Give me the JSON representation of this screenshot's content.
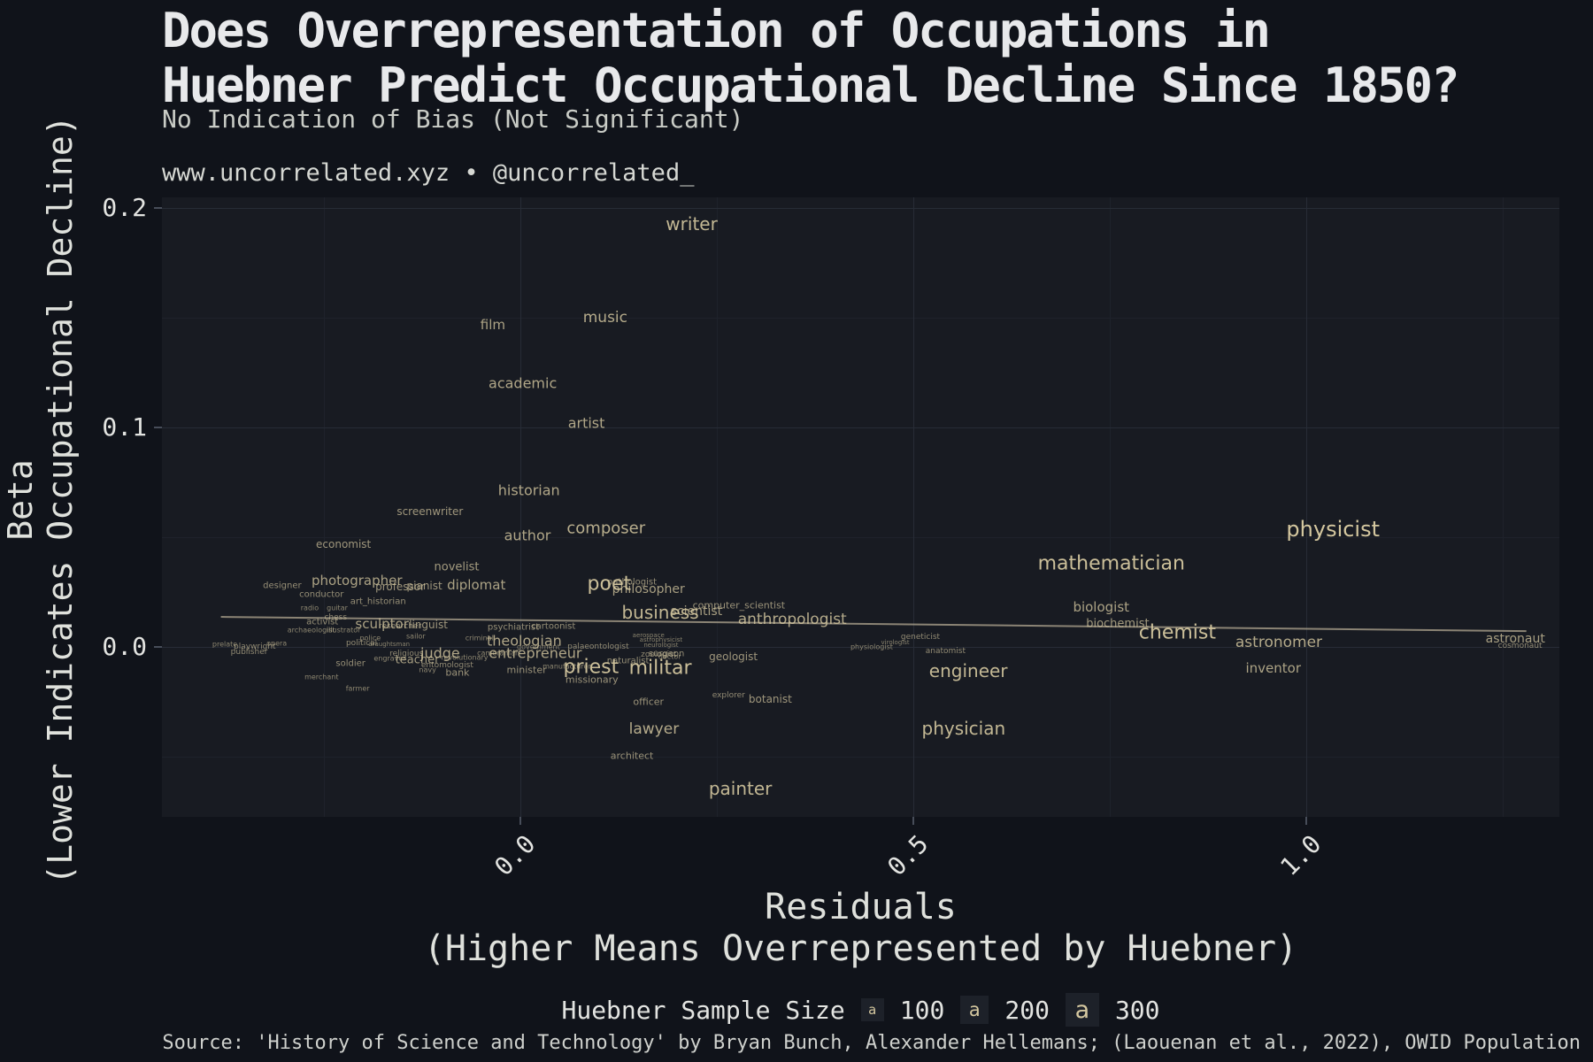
{
  "title": {
    "line1": "Does Overrepresentation of Occupations in",
    "line2": "Huebner Predict Occupational Decline Since 1850?"
  },
  "subtitle": "No Indication of Bias (Not Significant)",
  "credit": "www.uncorrelated.xyz • @uncorrelated_",
  "colors": {
    "background": "#10131a",
    "panel": "#181b22",
    "label": "#d5c8a0",
    "grid_major": "#272c36",
    "grid_minor": "#1e222b",
    "trend": "#a89f8a",
    "text": "#e3e4e1"
  },
  "legend": {
    "title": "Huebner Sample Size",
    "key_glyph": "a",
    "items": [
      {
        "label": "100"
      },
      {
        "label": "200"
      },
      {
        "label": "300"
      }
    ]
  },
  "source": "Source: 'History of Science and Technology' by Bryan Bunch, Alexander Hellemans; (Laouenan et al., 2022), OWID Population",
  "chart_data": {
    "type": "scatter",
    "title": "Does Overrepresentation of Occupations in Huebner Predict Occupational Decline Since 1850?",
    "xlabel_line1": "Residuals",
    "xlabel_line2": "(Higher Means Overrepresented by Huebner)",
    "ylabel_line1": "Beta",
    "ylabel_line2": "(Lower Indicates Occupational Decline)",
    "x_ticks": [
      {
        "v": 0.0,
        "label": "0.0"
      },
      {
        "v": 0.5,
        "label": "0.5"
      },
      {
        "v": 1.0,
        "label": "1.0"
      }
    ],
    "y_ticks": [
      {
        "v": 0.2,
        "label": "0.2"
      },
      {
        "v": 0.1,
        "label": "0.1"
      },
      {
        "v": 0.0,
        "label": "0.0"
      }
    ],
    "x_minor": [
      -0.25,
      0.25,
      0.75,
      1.25
    ],
    "y_minor": [
      0.15,
      0.05,
      -0.05
    ],
    "x_domain": [
      -0.456,
      1.322
    ],
    "y_domain": [
      -0.0774,
      0.2048
    ],
    "grid": true,
    "legend_position": "bottom",
    "trend": {
      "x1": -0.381,
      "y1": 0.0137,
      "x2": 1.28,
      "y2": 0.0072
    },
    "points": [
      {
        "t": "writer",
        "x": 0.218,
        "y": 0.1928,
        "s": 20
      },
      {
        "t": "music",
        "x": 0.108,
        "y": 0.1501,
        "s": 17
      },
      {
        "t": "film",
        "x": -0.035,
        "y": 0.1469,
        "s": 15
      },
      {
        "t": "academic",
        "x": 0.003,
        "y": 0.1203,
        "s": 16
      },
      {
        "t": "artist",
        "x": 0.084,
        "y": 0.1018,
        "s": 16
      },
      {
        "t": "historian",
        "x": 0.011,
        "y": 0.0712,
        "s": 16
      },
      {
        "t": "screenwriter",
        "x": -0.115,
        "y": 0.0616,
        "s": 12
      },
      {
        "t": "composer",
        "x": 0.109,
        "y": 0.0539,
        "s": 18
      },
      {
        "t": "author",
        "x": 0.009,
        "y": 0.0507,
        "s": 16
      },
      {
        "t": "economist",
        "x": -0.225,
        "y": 0.0467,
        "s": 12
      },
      {
        "t": "novelist",
        "x": -0.081,
        "y": 0.0362,
        "s": 13
      },
      {
        "t": "photographer",
        "x": -0.208,
        "y": 0.0302,
        "s": 15
      },
      {
        "t": "professor",
        "x": -0.153,
        "y": 0.0274,
        "s": 12
      },
      {
        "t": "pianist",
        "x": -0.122,
        "y": 0.0278,
        "s": 12
      },
      {
        "t": "designer",
        "x": -0.303,
        "y": 0.0278,
        "s": 10
      },
      {
        "t": "diplomat",
        "x": -0.056,
        "y": 0.0282,
        "s": 15
      },
      {
        "t": "poet",
        "x": 0.113,
        "y": 0.0286,
        "s": 22
      },
      {
        "t": "pathologist",
        "x": 0.142,
        "y": 0.0294,
        "s": 10
      },
      {
        "t": "philosopher",
        "x": 0.163,
        "y": 0.0262,
        "s": 14
      },
      {
        "t": "conductor",
        "x": -0.253,
        "y": 0.0237,
        "s": 10
      },
      {
        "t": "art_historian",
        "x": -0.181,
        "y": 0.0205,
        "s": 10
      },
      {
        "t": "radio",
        "x": -0.268,
        "y": 0.0177,
        "s": 8
      },
      {
        "t": "guitar",
        "x": -0.233,
        "y": 0.0177,
        "s": 8
      },
      {
        "t": "chess",
        "x": -0.235,
        "y": 0.0133,
        "s": 9
      },
      {
        "t": "activist",
        "x": -0.252,
        "y": 0.0113,
        "s": 10
      },
      {
        "t": "sculptor",
        "x": -0.176,
        "y": 0.0105,
        "s": 15
      },
      {
        "t": "researcher",
        "x": -0.153,
        "y": 0.0093,
        "s": 9
      },
      {
        "t": "linguist",
        "x": -0.117,
        "y": 0.0101,
        "s": 12
      },
      {
        "t": "archaeologist",
        "x": -0.266,
        "y": 0.0076,
        "s": 8
      },
      {
        "t": "illustrator",
        "x": -0.225,
        "y": 0.0076,
        "s": 8
      },
      {
        "t": "psychiatrist",
        "x": -0.009,
        "y": 0.0089,
        "s": 10
      },
      {
        "t": "cartoonist",
        "x": 0.042,
        "y": 0.0093,
        "s": 10
      },
      {
        "t": "business",
        "x": 0.178,
        "y": 0.0157,
        "s": 20
      },
      {
        "t": "scientist",
        "x": 0.224,
        "y": 0.0161,
        "s": 14
      },
      {
        "t": "computer_scientist",
        "x": 0.278,
        "y": 0.0189,
        "s": 11
      },
      {
        "t": "anthropologist",
        "x": 0.346,
        "y": 0.0125,
        "s": 17
      },
      {
        "t": "prelate",
        "x": -0.376,
        "y": 0.0012,
        "s": 8
      },
      {
        "t": "opera",
        "x": -0.31,
        "y": 0.0016,
        "s": 8
      },
      {
        "t": "playwright",
        "x": -0.338,
        "y": 0.0,
        "s": 9
      },
      {
        "t": "publisher",
        "x": -0.345,
        "y": -0.0024,
        "s": 9
      },
      {
        "t": "police",
        "x": -0.191,
        "y": 0.004,
        "s": 8
      },
      {
        "t": "political",
        "x": -0.202,
        "y": 0.0016,
        "s": 9
      },
      {
        "t": "draughtsman",
        "x": -0.167,
        "y": 0.0012,
        "s": 7
      },
      {
        "t": "sailor",
        "x": -0.133,
        "y": 0.0048,
        "s": 8
      },
      {
        "t": "criminal",
        "x": -0.052,
        "y": 0.004,
        "s": 8
      },
      {
        "t": "theologian",
        "x": 0.005,
        "y": 0.0028,
        "s": 16
      },
      {
        "t": "government",
        "x": 0.023,
        "y": 0.0,
        "s": 8
      },
      {
        "t": "palaeontologist",
        "x": 0.099,
        "y": 0.0,
        "s": 9
      },
      {
        "t": "cameraman",
        "x": -0.028,
        "y": -0.0028,
        "s": 8
      },
      {
        "t": "entrepreneur",
        "x": 0.019,
        "y": -0.0028,
        "s": 16
      },
      {
        "t": "religious",
        "x": -0.145,
        "y": -0.0032,
        "s": 9
      },
      {
        "t": "judge",
        "x": -0.102,
        "y": -0.0028,
        "s": 16
      },
      {
        "t": "revolutionary",
        "x": -0.071,
        "y": -0.0048,
        "s": 8
      },
      {
        "t": "engraver",
        "x": -0.166,
        "y": -0.0052,
        "s": 8
      },
      {
        "t": "teacher",
        "x": -0.131,
        "y": -0.006,
        "s": 13
      },
      {
        "t": "soldier",
        "x": -0.216,
        "y": -0.0076,
        "s": 10
      },
      {
        "t": "entomologist",
        "x": -0.093,
        "y": -0.0085,
        "s": 9
      },
      {
        "t": "navy",
        "x": -0.118,
        "y": -0.0105,
        "s": 8
      },
      {
        "t": "bank",
        "x": -0.08,
        "y": -0.0117,
        "s": 11
      },
      {
        "t": "merchant",
        "x": -0.253,
        "y": -0.0137,
        "s": 8
      },
      {
        "t": "farmer",
        "x": -0.207,
        "y": -0.0189,
        "s": 8
      },
      {
        "t": "minister",
        "x": 0.008,
        "y": -0.0105,
        "s": 11
      },
      {
        "t": "manufacturer",
        "x": 0.059,
        "y": -0.0089,
        "s": 8
      },
      {
        "t": "priest",
        "x": 0.09,
        "y": -0.0093,
        "s": 22
      },
      {
        "t": "missionary",
        "x": 0.091,
        "y": -0.0149,
        "s": 11
      },
      {
        "t": "aerospace",
        "x": 0.163,
        "y": 0.0052,
        "s": 7
      },
      {
        "t": "astrophysicist",
        "x": 0.179,
        "y": 0.0032,
        "s": 7
      },
      {
        "t": "neurologist",
        "x": 0.179,
        "y": 0.0008,
        "s": 7
      },
      {
        "t": "zoologist",
        "x": 0.176,
        "y": -0.0036,
        "s": 9
      },
      {
        "t": "surgeon",
        "x": 0.186,
        "y": -0.0032,
        "s": 10
      },
      {
        "t": "doctor",
        "x": 0.19,
        "y": -0.0044,
        "s": 8
      },
      {
        "t": "naturalist",
        "x": 0.137,
        "y": -0.0064,
        "s": 10
      },
      {
        "t": "militar",
        "x": 0.178,
        "y": -0.0097,
        "s": 22
      },
      {
        "t": "geologist",
        "x": 0.271,
        "y": -0.0044,
        "s": 12
      },
      {
        "t": "explorer",
        "x": 0.265,
        "y": -0.0221,
        "s": 9
      },
      {
        "t": "botanist",
        "x": 0.318,
        "y": -0.0237,
        "s": 12
      },
      {
        "t": "officer",
        "x": 0.163,
        "y": -0.0249,
        "s": 11
      },
      {
        "t": "lawyer",
        "x": 0.17,
        "y": -0.0374,
        "s": 17
      },
      {
        "t": "architect",
        "x": 0.142,
        "y": -0.0495,
        "s": 11
      },
      {
        "t": "painter",
        "x": 0.28,
        "y": -0.0644,
        "s": 20
      },
      {
        "t": "physician",
        "x": 0.564,
        "y": -0.037,
        "s": 20
      },
      {
        "t": "engineer",
        "x": 0.57,
        "y": -0.0109,
        "s": 20
      },
      {
        "t": "physiologist",
        "x": 0.447,
        "y": 0.0,
        "s": 8
      },
      {
        "t": "virologist",
        "x": 0.477,
        "y": 0.002,
        "s": 7
      },
      {
        "t": "geneticist",
        "x": 0.509,
        "y": 0.0044,
        "s": 9
      },
      {
        "t": "anatomist",
        "x": 0.541,
        "y": -0.002,
        "s": 9
      },
      {
        "t": "mathematician",
        "x": 0.752,
        "y": 0.0378,
        "s": 22
      },
      {
        "t": "biologist",
        "x": 0.739,
        "y": 0.0181,
        "s": 15
      },
      {
        "t": "biochemist",
        "x": 0.76,
        "y": 0.0105,
        "s": 13
      },
      {
        "t": "chemist",
        "x": 0.836,
        "y": 0.0064,
        "s": 22
      },
      {
        "t": "astronomer",
        "x": 0.965,
        "y": 0.002,
        "s": 17
      },
      {
        "t": "inventor",
        "x": 0.958,
        "y": -0.0097,
        "s": 15
      },
      {
        "t": "physicist",
        "x": 1.034,
        "y": 0.0535,
        "s": 24
      },
      {
        "t": "astronaut",
        "x": 1.266,
        "y": 0.0036,
        "s": 14
      },
      {
        "t": "cosmonaut",
        "x": 1.272,
        "y": 0.0004,
        "s": 9
      }
    ]
  }
}
